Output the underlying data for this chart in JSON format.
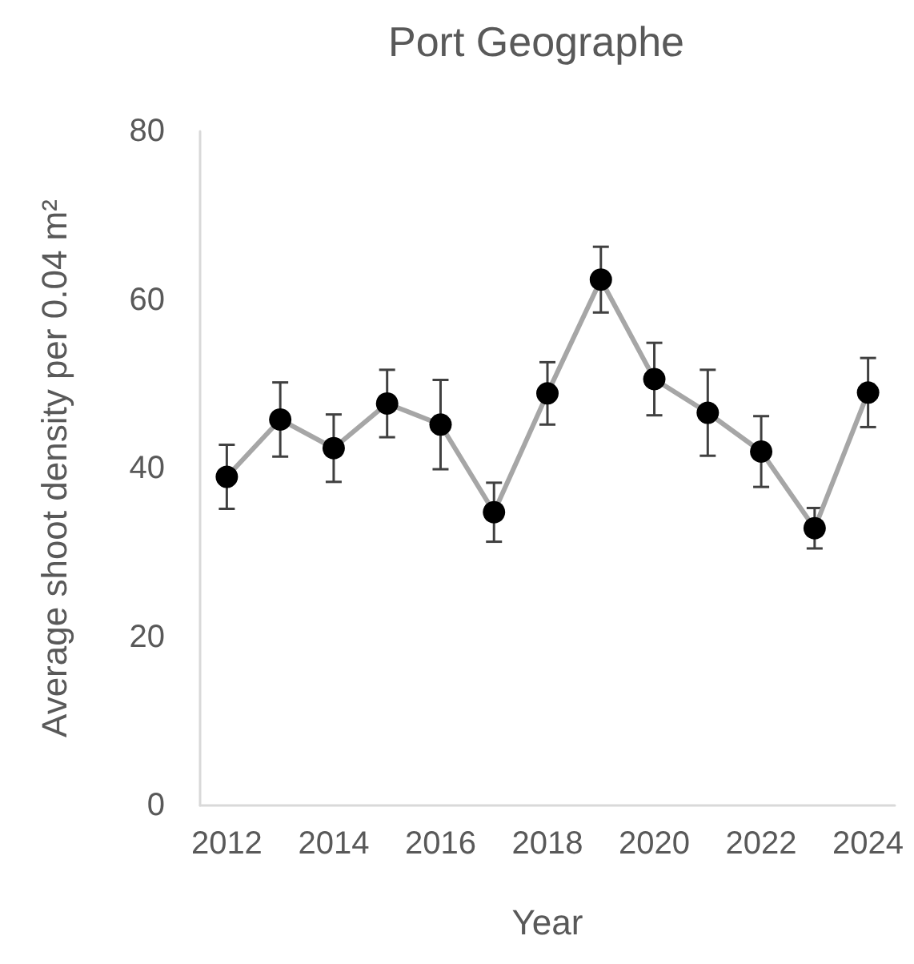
{
  "chart_data": {
    "type": "line",
    "title": "Port Geographe",
    "xlabel": "Year",
    "ylabel": "Average shoot density per 0.04 m²",
    "categories": [
      "2012",
      null,
      "2014",
      null,
      "2016",
      null,
      "2018",
      null,
      "2020",
      null,
      "2022",
      null,
      "2024"
    ],
    "series": [
      {
        "color": "#a6a6a6",
        "colors": [
          "#000000",
          "#000000",
          "#000000",
          "#000000",
          "#000000",
          "#000000",
          "#000000",
          "#000000",
          "#000000",
          "#000000",
          "#000000",
          "#000000",
          "#000000"
        ],
        "values": [
          39.0,
          45.8,
          42.4,
          47.7,
          45.2,
          34.8,
          48.9,
          62.4,
          50.6,
          46.6,
          42.0,
          32.9,
          49.0
        ],
        "errors": [
          3.8,
          4.4,
          4.0,
          4.0,
          5.3,
          3.5,
          3.7,
          3.9,
          4.3,
          5.1,
          4.2,
          2.4,
          4.1
        ]
      }
    ],
    "ylim": [
      0,
      80
    ],
    "yticks": [
      0,
      20,
      40,
      60,
      80
    ],
    "grid": false,
    "marker": "circle",
    "line_style": "solid"
  }
}
